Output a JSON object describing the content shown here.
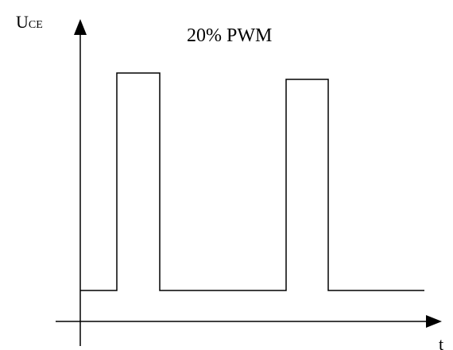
{
  "axes": {
    "y_label_main": "U",
    "y_label_sub": "CE",
    "x_label": "t"
  },
  "title": "20% PWM",
  "colors": {
    "stroke": "#000000",
    "background": "#ffffff"
  }
}
